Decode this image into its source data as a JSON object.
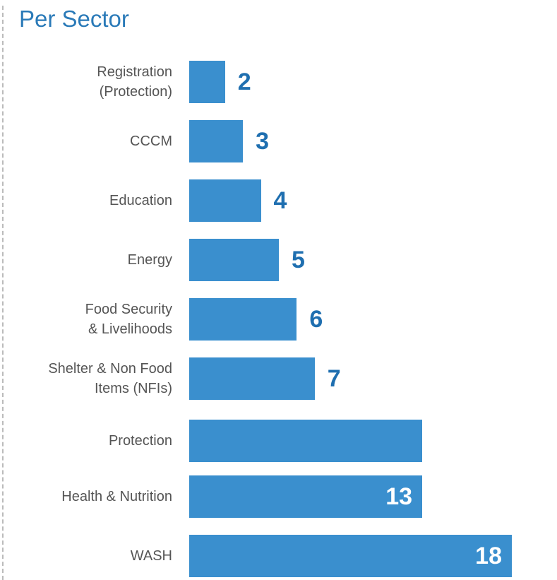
{
  "chart_data": {
    "type": "bar",
    "orientation": "horizontal",
    "title": "Per Sector",
    "categories": [
      "Registration\n(Protection)",
      "CCCM",
      "Education",
      "Energy",
      "Food Security\n& Livelihoods",
      "Shelter & Non Food\nItems (NFIs)",
      "Protection",
      "Health & Nutrition",
      "WASH"
    ],
    "values": [
      2,
      3,
      4,
      5,
      6,
      7,
      13,
      13,
      18
    ],
    "value_labels": [
      "2",
      "3",
      "4",
      "5",
      "6",
      "7",
      null,
      "13",
      "18"
    ],
    "color": "#3a8fce"
  }
}
